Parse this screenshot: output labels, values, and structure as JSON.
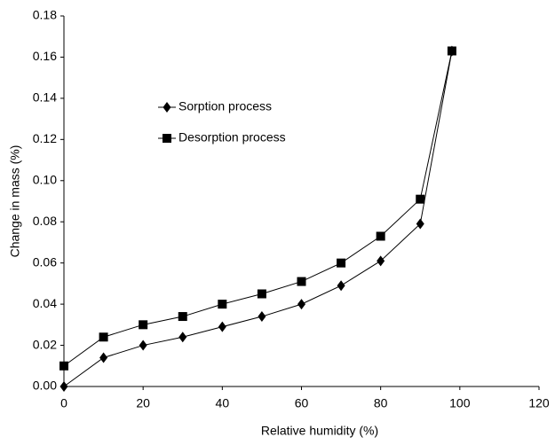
{
  "chart_data": {
    "type": "line",
    "x_label": "Relative humidity (%)",
    "y_label": "Change in mass (%)",
    "x": [
      0,
      10,
      20,
      30,
      40,
      50,
      60,
      70,
      80,
      90,
      98
    ],
    "series": [
      {
        "name": "Sorption process",
        "color": "#000000",
        "marker": "diamond",
        "values": [
          0.0,
          0.014,
          0.02,
          0.024,
          0.029,
          0.034,
          0.04,
          0.049,
          0.061,
          0.079,
          0.163
        ]
      },
      {
        "name": "Desorption process",
        "color": "#000000",
        "marker": "square",
        "values": [
          0.01,
          0.024,
          0.03,
          0.034,
          0.04,
          0.045,
          0.051,
          0.06,
          0.073,
          0.091,
          0.163
        ]
      }
    ],
    "xlim": [
      0,
      120
    ],
    "xticks": [
      0,
      20,
      40,
      60,
      80,
      100,
      120
    ],
    "ylim": [
      0,
      0.18
    ],
    "yticks": [
      {
        "value": 0,
        "label": "0.00"
      },
      {
        "value": 0.02,
        "label": "0.02"
      },
      {
        "value": 0.04,
        "label": "0.04"
      },
      {
        "value": 0.06,
        "label": "0.06"
      },
      {
        "value": 0.08,
        "label": "0.08"
      },
      {
        "value": 0.1,
        "label": "0.10"
      },
      {
        "value": 0.12,
        "label": "0.12"
      },
      {
        "value": 0.14,
        "label": "0.14"
      },
      {
        "value": 0.16,
        "label": "0.16"
      },
      {
        "value": 0.18,
        "label": "0.18"
      }
    ],
    "grid": false
  }
}
